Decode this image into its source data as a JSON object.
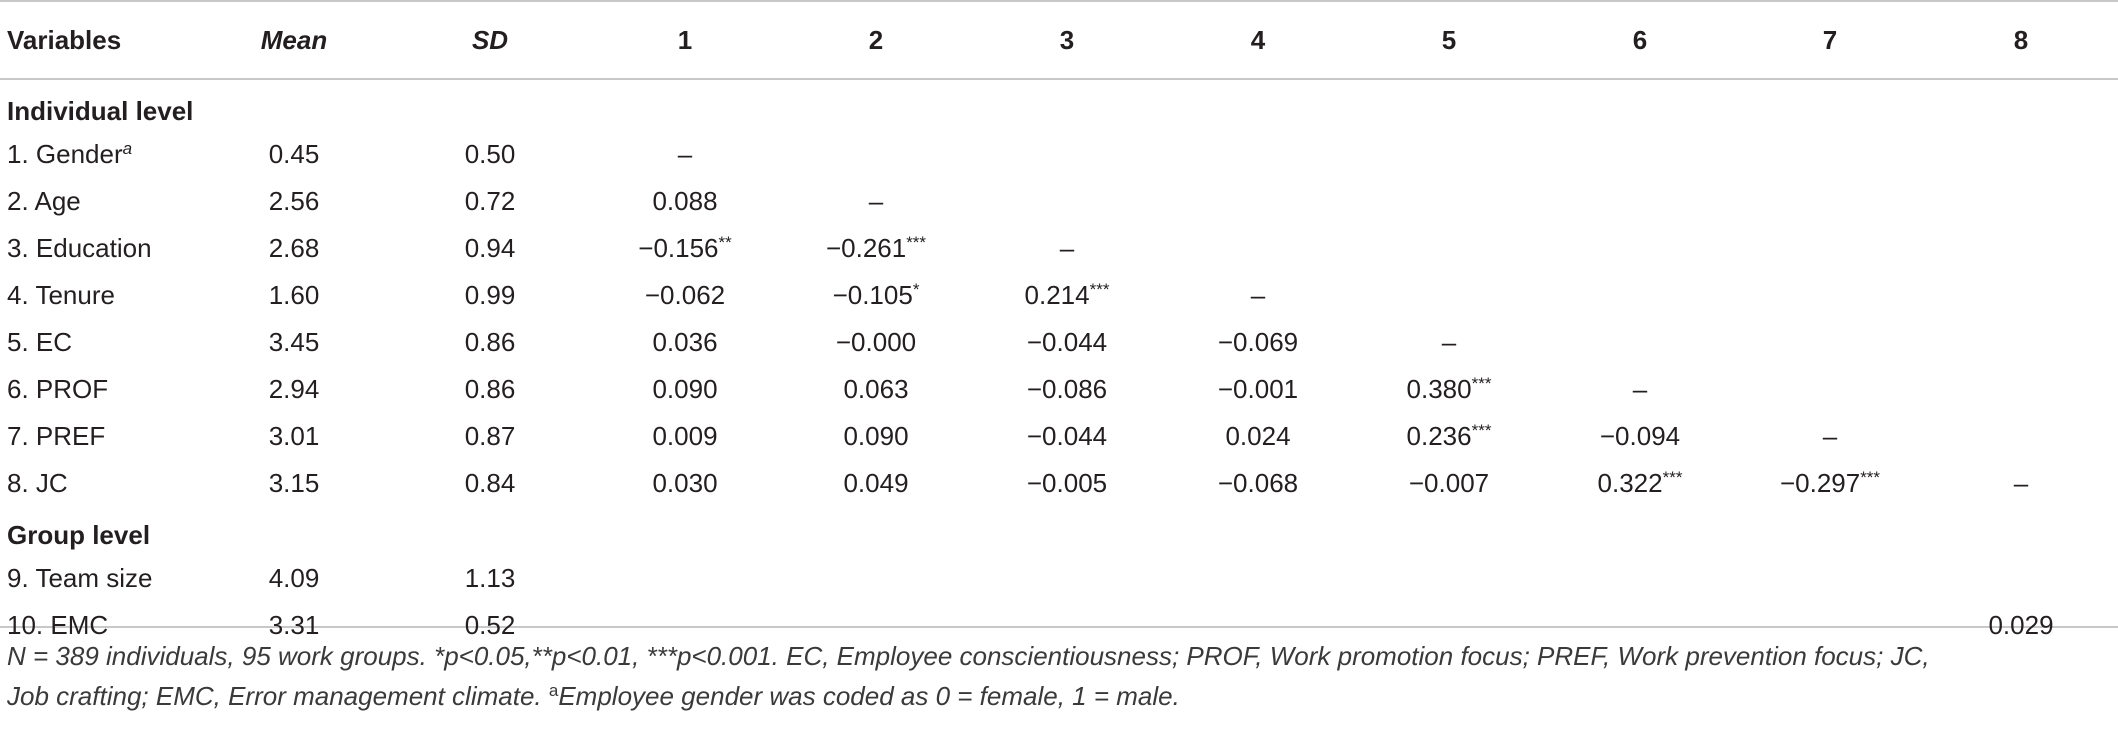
{
  "header": {
    "variables": "Variables",
    "mean": "Mean",
    "sd": "SD",
    "cols": [
      "1",
      "2",
      "3",
      "4",
      "5",
      "6",
      "7",
      "8"
    ]
  },
  "sections": {
    "individual": "Individual level",
    "group": "Group level"
  },
  "rows": [
    {
      "label": "1. Gender",
      "sup": "a",
      "mean": "0.45",
      "sd": "0.50",
      "c1": "–",
      "c2": "",
      "c3": "",
      "c4": "",
      "c5": "",
      "c6": "",
      "c7": "",
      "c8": ""
    },
    {
      "label": "2. Age",
      "sup": "",
      "mean": "2.56",
      "sd": "0.72",
      "c1": "0.088",
      "c2": "–",
      "c3": "",
      "c4": "",
      "c5": "",
      "c6": "",
      "c7": "",
      "c8": ""
    },
    {
      "label": "3. Education",
      "sup": "",
      "mean": "2.68",
      "sd": "0.94",
      "c1": "−0.156**",
      "c2": "−0.261***",
      "c3": "–",
      "c4": "",
      "c5": "",
      "c6": "",
      "c7": "",
      "c8": ""
    },
    {
      "label": "4. Tenure",
      "sup": "",
      "mean": "1.60",
      "sd": "0.99",
      "c1": "−0.062",
      "c2": "−0.105*",
      "c3": "0.214***",
      "c4": "–",
      "c5": "",
      "c6": "",
      "c7": "",
      "c8": ""
    },
    {
      "label": "5. EC",
      "sup": "",
      "mean": "3.45",
      "sd": "0.86",
      "c1": "0.036",
      "c2": "−0.000",
      "c3": "−0.044",
      "c4": "−0.069",
      "c5": "–",
      "c6": "",
      "c7": "",
      "c8": ""
    },
    {
      "label": "6. PROF",
      "sup": "",
      "mean": "2.94",
      "sd": "0.86",
      "c1": "0.090",
      "c2": "0.063",
      "c3": "−0.086",
      "c4": "−0.001",
      "c5": "0.380***",
      "c6": "–",
      "c7": "",
      "c8": ""
    },
    {
      "label": "7. PREF",
      "sup": "",
      "mean": "3.01",
      "sd": "0.87",
      "c1": "0.009",
      "c2": "0.090",
      "c3": "−0.044",
      "c4": "0.024",
      "c5": "0.236***",
      "c6": "−0.094",
      "c7": "–",
      "c8": ""
    },
    {
      "label": "8. JC",
      "sup": "",
      "mean": "3.15",
      "sd": "0.84",
      "c1": "0.030",
      "c2": "0.049",
      "c3": "−0.005",
      "c4": "−0.068",
      "c5": "−0.007",
      "c6": "0.322***",
      "c7": "−0.297***",
      "c8": "–"
    },
    {
      "label": "9. Team size",
      "sup": "",
      "mean": "4.09",
      "sd": "1.13",
      "c1": "",
      "c2": "",
      "c3": "",
      "c4": "",
      "c5": "",
      "c6": "",
      "c7": "",
      "c8": ""
    },
    {
      "label": "10. EMC",
      "sup": "",
      "mean": "3.31",
      "sd": "0.52",
      "c1": "",
      "c2": "",
      "c3": "",
      "c4": "",
      "c5": "",
      "c6": "",
      "c7": "",
      "c8": "0.029"
    }
  ],
  "note": {
    "line1": "N = 389 individuals, 95 work groups. *p<0.05,**p<0.01, ***p<0.001. EC, Employee conscientiousness; PROF, Work promotion focus; PREF, Work prevention focus; JC,",
    "line2a": "Job crafting; EMC, Error management climate. ",
    "line2sup": "a",
    "line2b": "Employee gender was coded as 0 = female, 1 = male."
  }
}
